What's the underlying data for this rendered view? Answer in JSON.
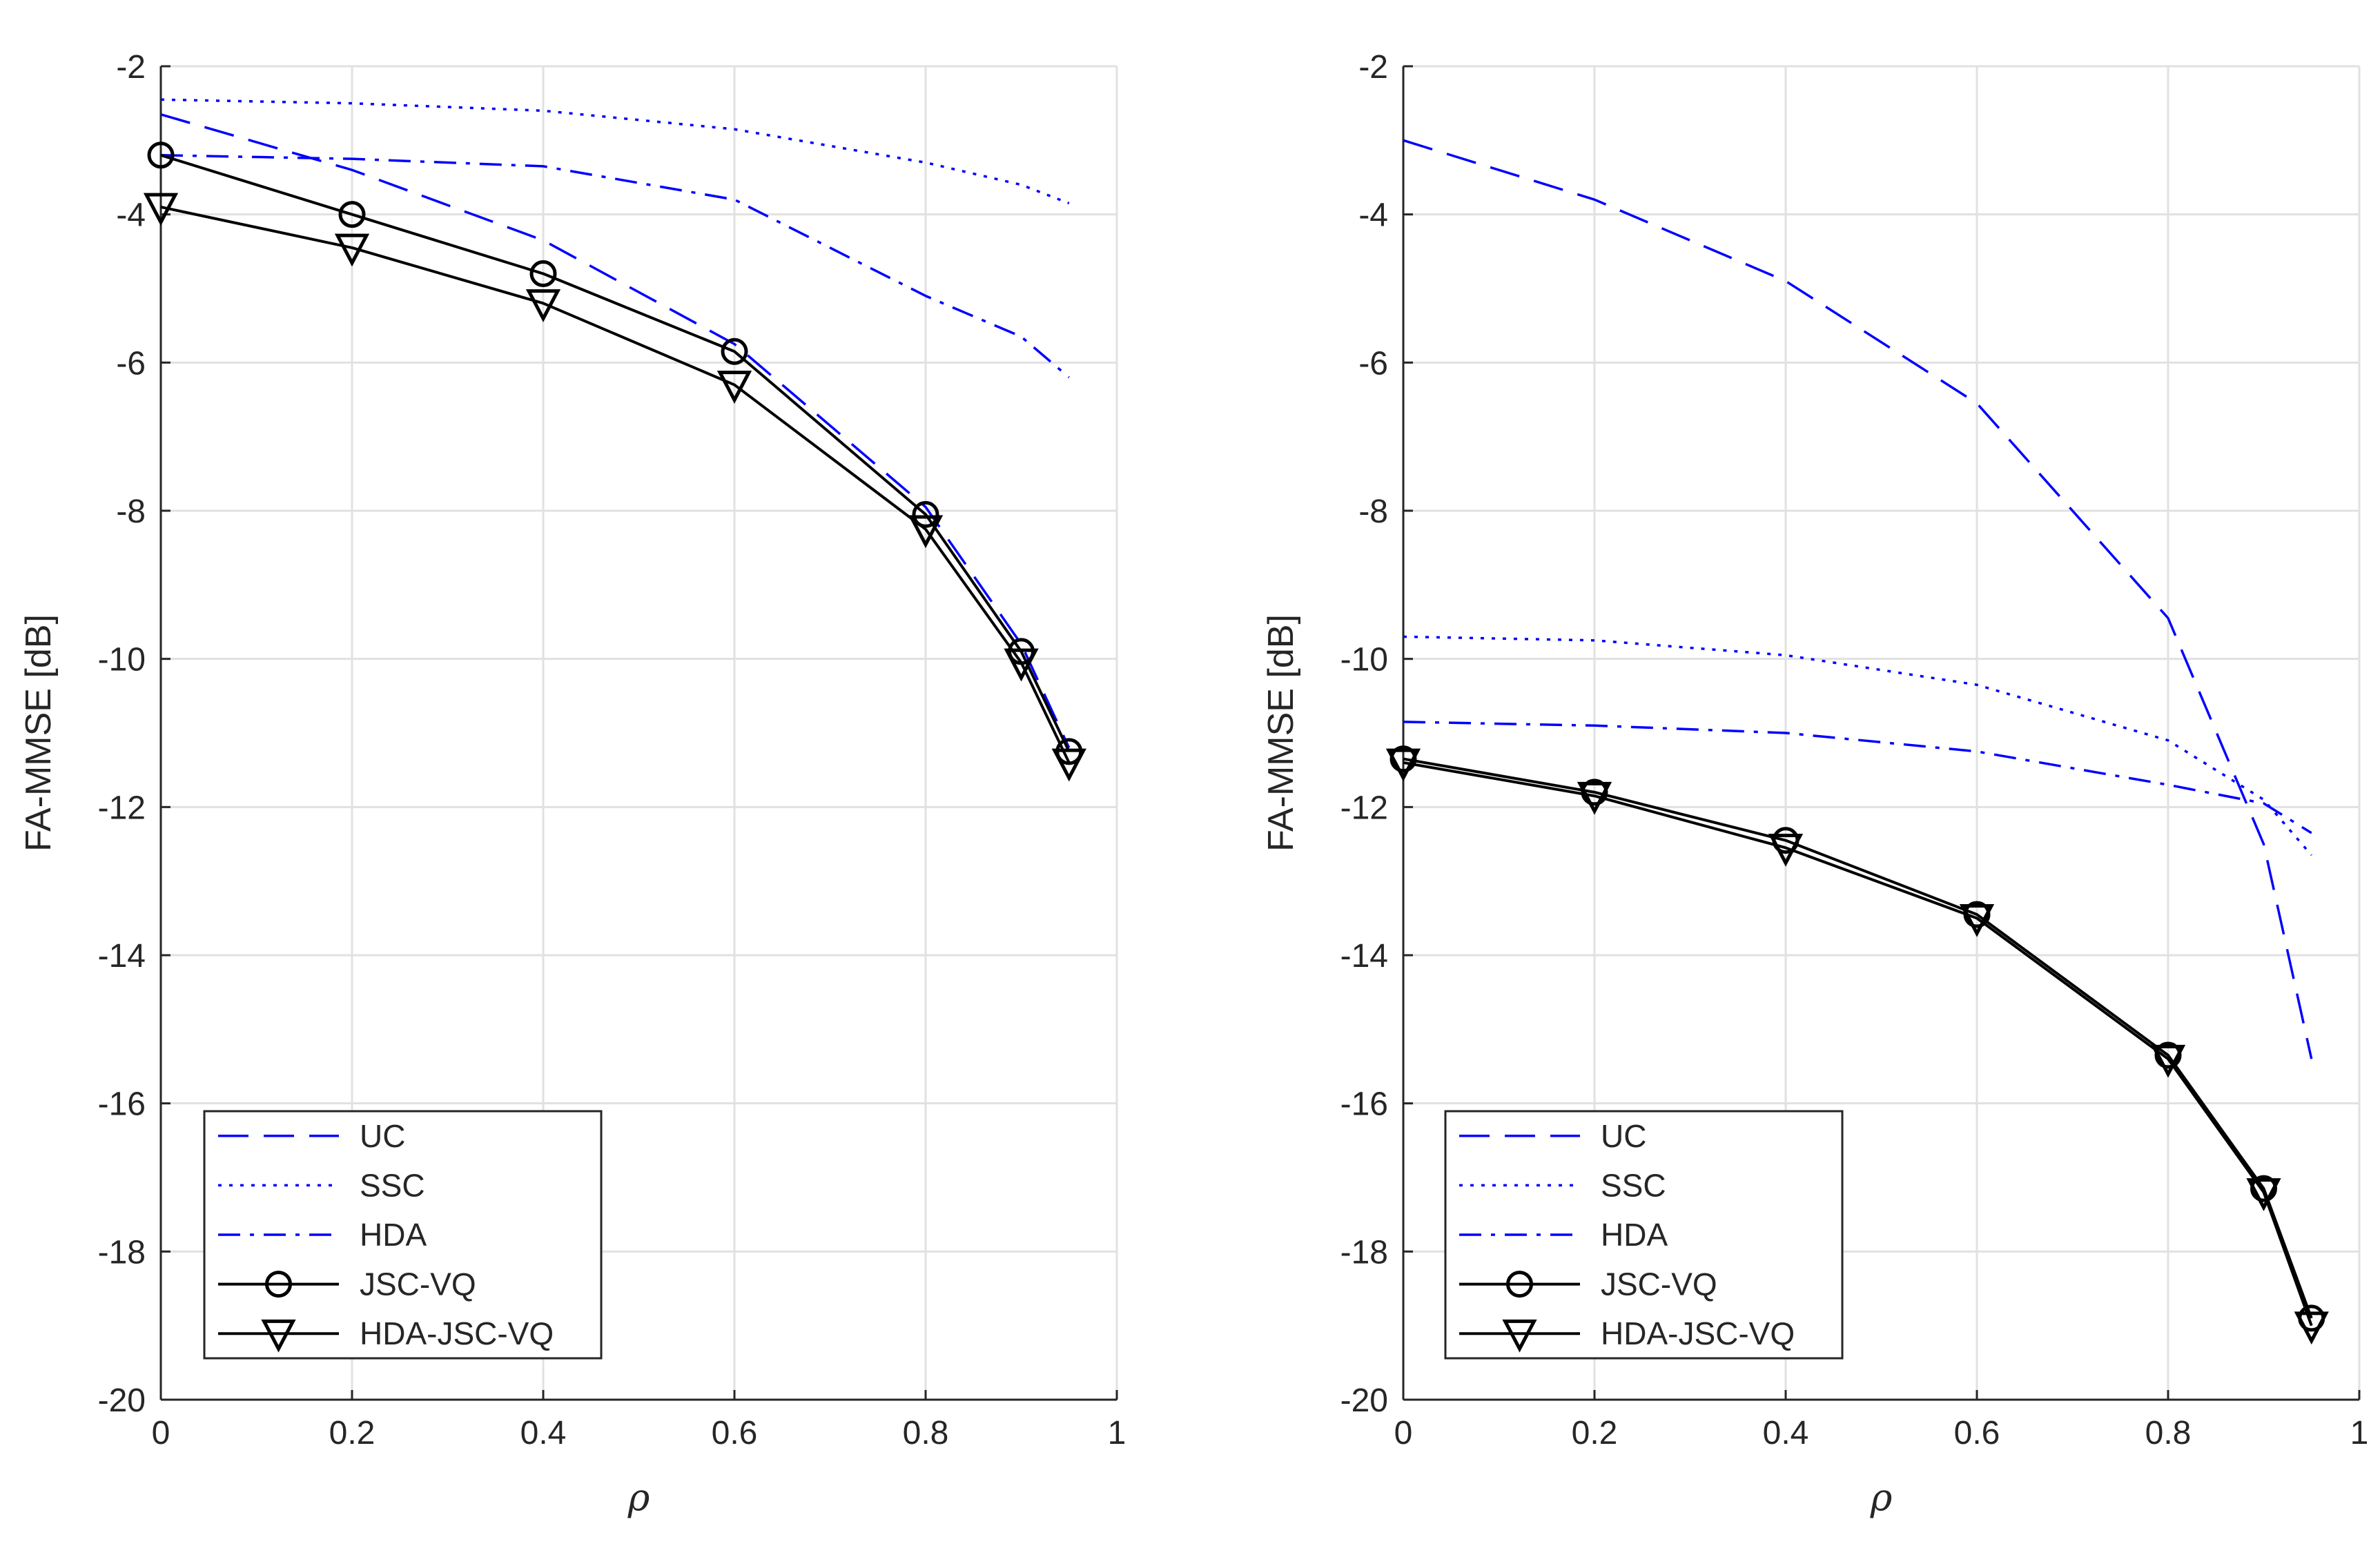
{
  "chart_data": [
    {
      "type": "line",
      "xlabel": "ρ",
      "ylabel": "FA-MMSE [dB]",
      "xlim": [
        0,
        1
      ],
      "ylim": [
        -20,
        -2
      ],
      "xticks": [
        0,
        0.2,
        0.4,
        0.6,
        0.8,
        1
      ],
      "xtick_labels": [
        "0",
        "0.2",
        "0.4",
        "0.6",
        "0.8",
        "1"
      ],
      "yticks": [
        -2,
        -4,
        -6,
        -8,
        -10,
        -12,
        -14,
        -16,
        -18,
        -20
      ],
      "ytick_labels": [
        "-2",
        "-4",
        "-6",
        "-8",
        "-10",
        "-12",
        "-14",
        "-16",
        "-18",
        "-20"
      ],
      "grid": true,
      "legend_position": "bottom-left",
      "series": [
        {
          "name": "UC",
          "color": "#0000ff",
          "style": "dashed",
          "marker": "none",
          "x": [
            0,
            0.2,
            0.4,
            0.6,
            0.8,
            0.9,
            0.95
          ],
          "y": [
            -2.65,
            -3.4,
            -4.35,
            -5.75,
            -7.95,
            -9.8,
            -11.2
          ]
        },
        {
          "name": "SSC",
          "color": "#0000ff",
          "style": "dotted",
          "marker": "none",
          "x": [
            0,
            0.2,
            0.4,
            0.6,
            0.8,
            0.9,
            0.95
          ],
          "y": [
            -2.45,
            -2.5,
            -2.6,
            -2.85,
            -3.3,
            -3.6,
            -3.85
          ]
        },
        {
          "name": "HDA",
          "color": "#0000ff",
          "style": "dashdot",
          "marker": "none",
          "x": [
            0,
            0.2,
            0.4,
            0.6,
            0.8,
            0.9,
            0.95
          ],
          "y": [
            -3.2,
            -3.25,
            -3.35,
            -3.8,
            -5.1,
            -5.65,
            -6.2
          ]
        },
        {
          "name": "JSC-VQ",
          "color": "#000000",
          "style": "solid",
          "marker": "circle",
          "x": [
            0,
            0.2,
            0.4,
            0.6,
            0.8,
            0.9,
            0.95
          ],
          "y": [
            -3.2,
            -4.0,
            -4.8,
            -5.85,
            -8.05,
            -9.9,
            -11.25
          ]
        },
        {
          "name": "HDA-JSC-VQ",
          "color": "#000000",
          "style": "solid",
          "marker": "triangle-down",
          "x": [
            0,
            0.2,
            0.4,
            0.6,
            0.8,
            0.9,
            0.95
          ],
          "y": [
            -3.9,
            -4.45,
            -5.2,
            -6.3,
            -8.25,
            -10.05,
            -11.4
          ]
        }
      ]
    },
    {
      "type": "line",
      "xlabel": "ρ",
      "ylabel": "FA-MMSE [dB]",
      "xlim": [
        0,
        1
      ],
      "ylim": [
        -20,
        -2
      ],
      "xticks": [
        0,
        0.2,
        0.4,
        0.6,
        0.8,
        1
      ],
      "xtick_labels": [
        "0",
        "0.2",
        "0.4",
        "0.6",
        "0.8",
        "1"
      ],
      "yticks": [
        -2,
        -4,
        -6,
        -8,
        -10,
        -12,
        -14,
        -16,
        -18,
        -20
      ],
      "ytick_labels": [
        "-2",
        "-4",
        "-6",
        "-8",
        "-10",
        "-12",
        "-14",
        "-16",
        "-18",
        "-20"
      ],
      "grid": true,
      "legend_position": "bottom-left",
      "series": [
        {
          "name": "UC",
          "color": "#0000ff",
          "style": "dashed",
          "marker": "none",
          "x": [
            0,
            0.2,
            0.4,
            0.6,
            0.8,
            0.9,
            0.95
          ],
          "y": [
            -3.0,
            -3.8,
            -4.9,
            -6.55,
            -9.45,
            -12.5,
            -15.4
          ]
        },
        {
          "name": "SSC",
          "color": "#0000ff",
          "style": "dotted",
          "marker": "none",
          "x": [
            0,
            0.2,
            0.4,
            0.6,
            0.8,
            0.9,
            0.95
          ],
          "y": [
            -9.7,
            -9.75,
            -9.95,
            -10.35,
            -11.1,
            -11.9,
            -12.65
          ]
        },
        {
          "name": "HDA",
          "color": "#0000ff",
          "style": "dashdot",
          "marker": "none",
          "x": [
            0,
            0.2,
            0.4,
            0.6,
            0.8,
            0.9,
            0.95
          ],
          "y": [
            -10.85,
            -10.9,
            -11.0,
            -11.25,
            -11.7,
            -11.95,
            -12.35
          ]
        },
        {
          "name": "JSC-VQ",
          "color": "#000000",
          "style": "solid",
          "marker": "circle",
          "x": [
            0,
            0.2,
            0.4,
            0.6,
            0.8,
            0.9,
            0.95
          ],
          "y": [
            -11.35,
            -11.8,
            -12.45,
            -13.45,
            -15.35,
            -17.15,
            -18.9
          ]
        },
        {
          "name": "HDA-JSC-VQ",
          "color": "#000000",
          "style": "solid",
          "marker": "triangle-down",
          "x": [
            0,
            0.2,
            0.4,
            0.6,
            0.8,
            0.9,
            0.95
          ],
          "y": [
            -11.4,
            -11.85,
            -12.55,
            -13.5,
            -15.4,
            -17.2,
            -19.0
          ]
        }
      ]
    }
  ]
}
